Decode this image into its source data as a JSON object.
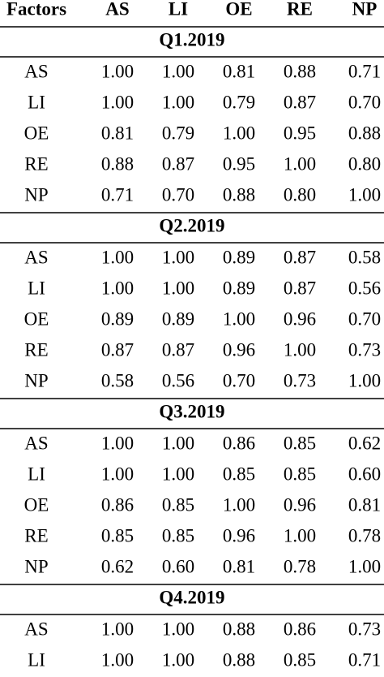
{
  "table": {
    "header": [
      "Factors",
      "AS",
      "LI",
      "OE",
      "RE",
      "NP"
    ],
    "sections": [
      {
        "title": "Q1.2019",
        "rows": [
          [
            "AS",
            "1.00",
            "1.00",
            "0.81",
            "0.88",
            "0.71"
          ],
          [
            "LI",
            "1.00",
            "1.00",
            "0.79",
            "0.87",
            "0.70"
          ],
          [
            "OE",
            "0.81",
            "0.79",
            "1.00",
            "0.95",
            "0.88"
          ],
          [
            "RE",
            "0.88",
            "0.87",
            "0.95",
            "1.00",
            "0.80"
          ],
          [
            "NP",
            "0.71",
            "0.70",
            "0.88",
            "0.80",
            "1.00"
          ]
        ]
      },
      {
        "title": "Q2.2019",
        "rows": [
          [
            "AS",
            "1.00",
            "1.00",
            "0.89",
            "0.87",
            "0.58"
          ],
          [
            "LI",
            "1.00",
            "1.00",
            "0.89",
            "0.87",
            "0.56"
          ],
          [
            "OE",
            "0.89",
            "0.89",
            "1.00",
            "0.96",
            "0.70"
          ],
          [
            "RE",
            "0.87",
            "0.87",
            "0.96",
            "1.00",
            "0.73"
          ],
          [
            "NP",
            "0.58",
            "0.56",
            "0.70",
            "0.73",
            "1.00"
          ]
        ]
      },
      {
        "title": "Q3.2019",
        "rows": [
          [
            "AS",
            "1.00",
            "1.00",
            "0.86",
            "0.85",
            "0.62"
          ],
          [
            "LI",
            "1.00",
            "1.00",
            "0.85",
            "0.85",
            "0.60"
          ],
          [
            "OE",
            "0.86",
            "0.85",
            "1.00",
            "0.96",
            "0.81"
          ],
          [
            "RE",
            "0.85",
            "0.85",
            "0.96",
            "1.00",
            "0.78"
          ],
          [
            "NP",
            "0.62",
            "0.60",
            "0.81",
            "0.78",
            "1.00"
          ]
        ]
      },
      {
        "title": "Q4.2019",
        "rows": [
          [
            "AS",
            "1.00",
            "1.00",
            "0.88",
            "0.86",
            "0.73"
          ],
          [
            "LI",
            "1.00",
            "1.00",
            "0.88",
            "0.85",
            "0.71"
          ]
        ]
      }
    ]
  }
}
